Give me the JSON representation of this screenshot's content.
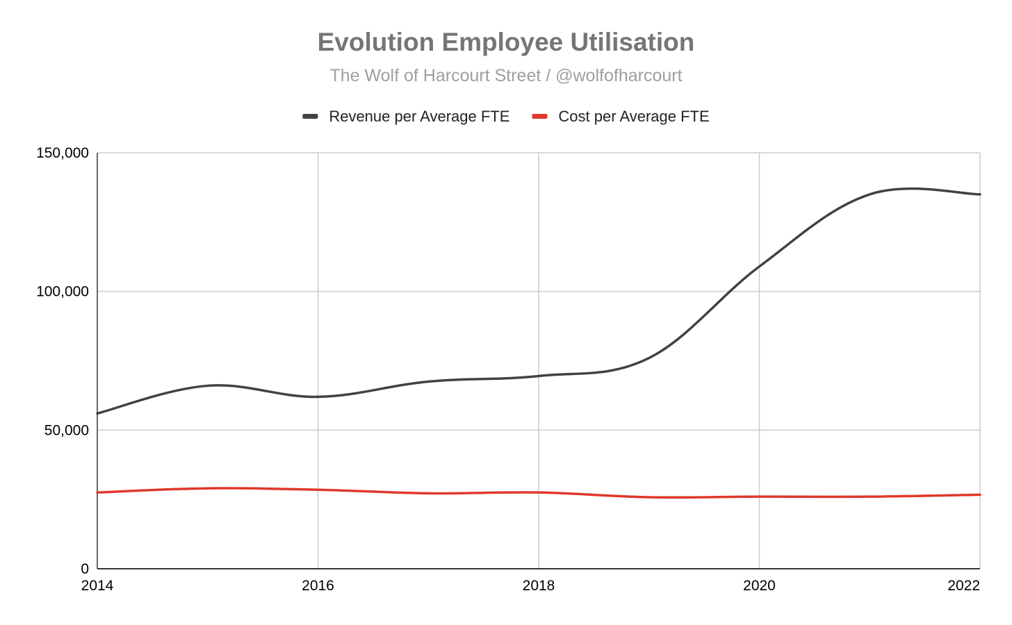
{
  "chart_data": {
    "type": "line",
    "title": "Evolution Employee Utilisation",
    "subtitle": "The Wolf of Harcourt Street / @wolfofharcourt",
    "xlabel": "",
    "ylabel": "",
    "x": [
      2014,
      2015,
      2016,
      2017,
      2018,
      2019,
      2020,
      2021,
      2022
    ],
    "xticks": [
      "2014",
      "2016",
      "2018",
      "2020",
      "2022"
    ],
    "xlim": [
      2014,
      2022
    ],
    "ylim": [
      0,
      150000
    ],
    "yticks": [
      "0",
      "50,000",
      "100,000",
      "150,000"
    ],
    "ytick_values": [
      0,
      50000,
      100000,
      150000
    ],
    "grid": true,
    "legend_position": "top",
    "series": [
      {
        "name": "Revenue per Average FTE",
        "color": "#424242",
        "values": [
          56000,
          66000,
          62000,
          67500,
          69500,
          76000,
          109000,
          135000,
          135000
        ]
      },
      {
        "name": "Cost per Average FTE",
        "color": "#e0392b",
        "values": [
          27500,
          29000,
          28500,
          27200,
          27500,
          25800,
          26000,
          26000,
          26700
        ]
      }
    ]
  }
}
